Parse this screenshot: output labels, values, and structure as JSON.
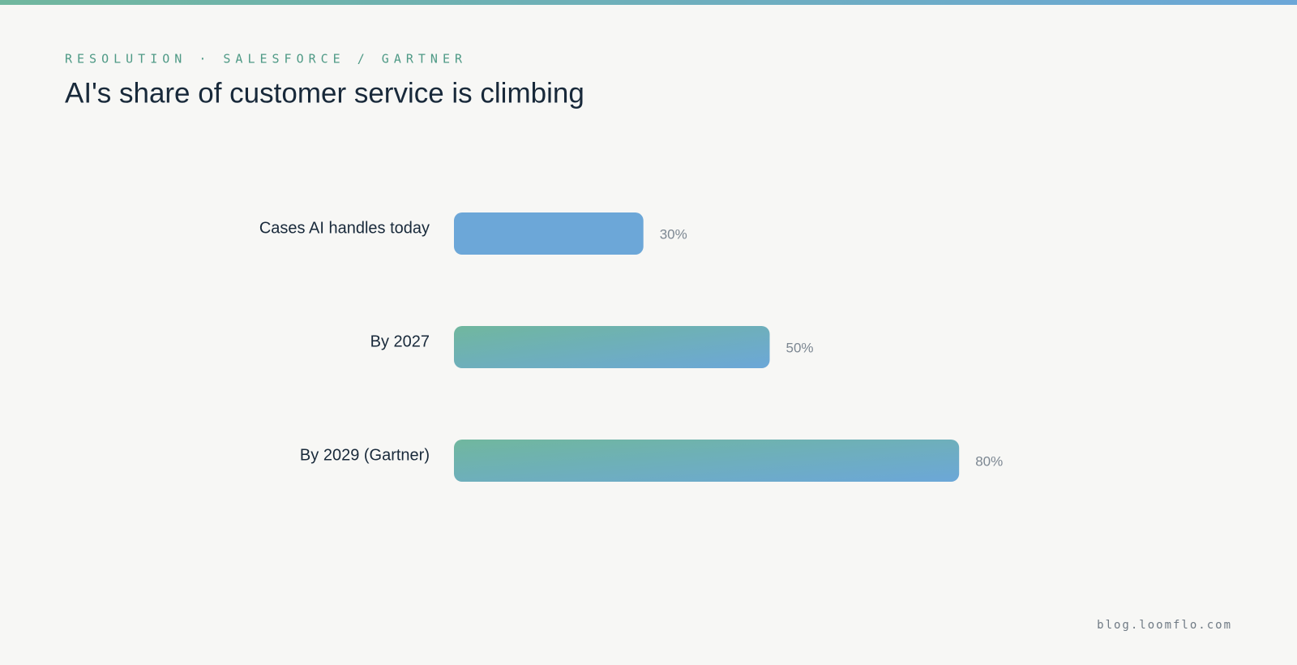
{
  "chart_data": {
    "type": "bar",
    "orientation": "horizontal",
    "subtitle": "RESOLUTION · SALESFORCE / GARTNER",
    "title": "AI's share of customer service is climbing",
    "categories": [
      "Cases AI handles today",
      "By 2027",
      "By 2029 (Gartner)"
    ],
    "values": [
      30,
      50,
      80
    ],
    "value_labels": [
      "30%",
      "50%",
      "80%"
    ],
    "colors": [
      [
        "#6ca7d8",
        "#6ca7d8"
      ],
      [
        "#70b79e",
        "#6ca7d8"
      ],
      [
        "#70b79e",
        "#6ca7d8"
      ]
    ],
    "source": "blog.loomflo.com"
  }
}
